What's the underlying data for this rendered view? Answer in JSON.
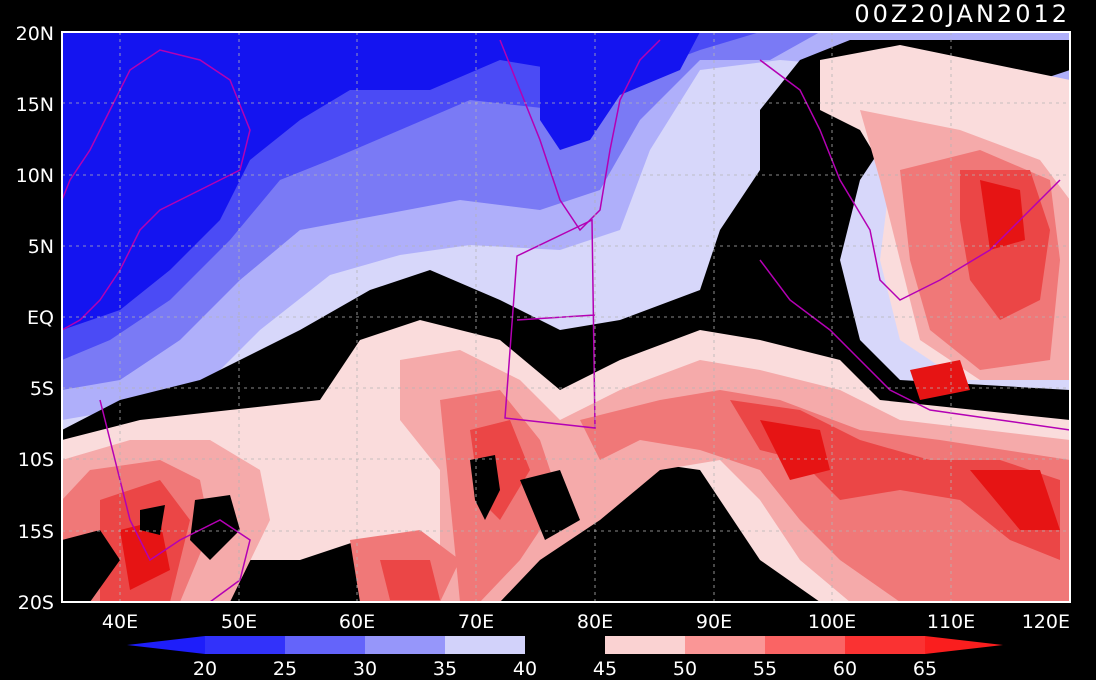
{
  "timestamp": "00Z20JAN2012",
  "lat_labels": [
    "20N",
    "15N",
    "10N",
    "5N",
    "EQ",
    "5S",
    "10S",
    "15S",
    "20S"
  ],
  "lon_labels": [
    "40E",
    "50E",
    "60E",
    "70E",
    "80E",
    "90E",
    "100E",
    "110E",
    "120E"
  ],
  "colorbar": {
    "labels": [
      "20",
      "25",
      "30",
      "35",
      "40",
      "45",
      "50",
      "55",
      "60",
      "65"
    ],
    "colors": [
      "#1e1efa",
      "#3232fa",
      "#6464fa",
      "#9696fa",
      "#d2d2fa",
      "#000000",
      "#fad2d2",
      "#fa9696",
      "#fa6464",
      "#fa3232",
      "#fa1e1e"
    ]
  },
  "palette": {
    "deep_blue": "#1414f0",
    "blue": "#4b4bf5",
    "mid_blue": "#7a7af5",
    "light_blue": "#afaffa",
    "pale_blue": "#d7d7fa",
    "black": "#000000",
    "pale_red": "#fadcdc",
    "light_red": "#f5aaaa",
    "mid_red": "#f07878",
    "red": "#eb4646",
    "deep_red": "#e61414",
    "coastline": "#b400b4",
    "gridline": "#b4b4b4"
  }
}
